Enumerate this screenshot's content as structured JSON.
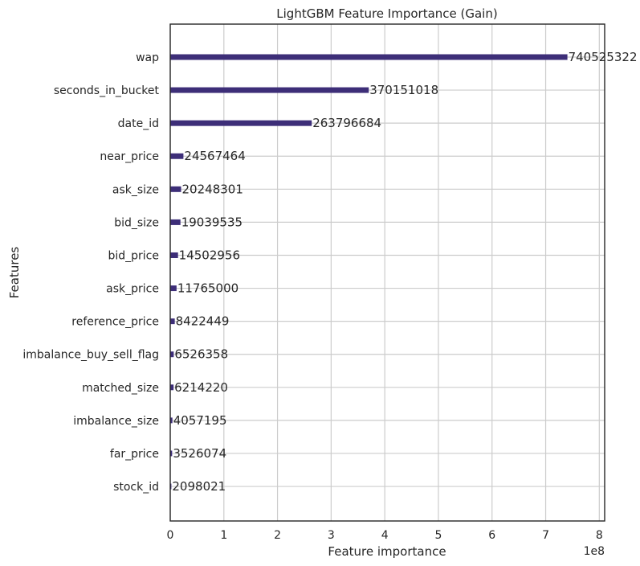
{
  "chart_data": {
    "type": "bar",
    "orientation": "horizontal",
    "title": "LightGBM Feature Importance (Gain)",
    "xlabel": "Feature importance",
    "ylabel": "Features",
    "x_offset_text": "1e8",
    "xlim": [
      0,
      810000000
    ],
    "x_ticks": [
      0,
      100000000,
      200000000,
      300000000,
      400000000,
      500000000,
      600000000,
      700000000,
      800000000
    ],
    "x_tick_labels": [
      "0",
      "1",
      "2",
      "3",
      "4",
      "5",
      "6",
      "7",
      "8"
    ],
    "grid": true,
    "bar_color": "#3d2e78",
    "categories": [
      "wap",
      "seconds_in_bucket",
      "date_id",
      "near_price",
      "ask_size",
      "bid_size",
      "bid_price",
      "ask_price",
      "reference_price",
      "imbalance_buy_sell_flag",
      "matched_size",
      "imbalance_size",
      "far_price",
      "stock_id"
    ],
    "values": [
      740525322,
      370151018,
      263796684,
      24567464,
      20248301,
      19039535,
      14502956,
      11765000,
      8422449,
      6526358,
      6214220,
      4057195,
      3526074,
      2098021
    ],
    "data_labels": [
      "740525322",
      "370151018",
      "263796684",
      "24567464",
      "20248301",
      "19039535",
      "14502956",
      "11765000",
      "8422449",
      "6526358",
      "6214220",
      "4057195",
      "3526074",
      "2098021"
    ]
  }
}
